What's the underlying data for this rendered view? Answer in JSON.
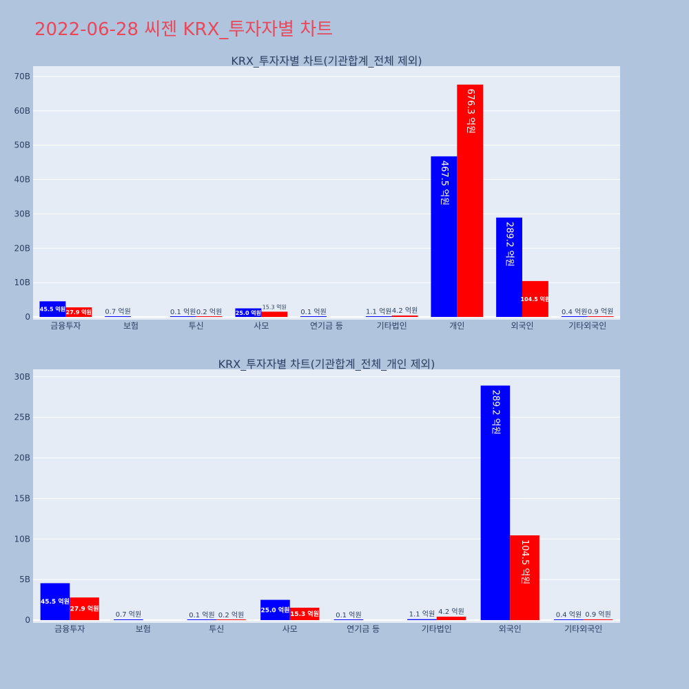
{
  "page_title": "2022-06-28 씨젠 KRX_투자자별 차트",
  "colors": {
    "background": "#b0c4de",
    "plot_background": "#e5ecf6",
    "title": "#e8485a",
    "series_1": "#0000ff",
    "series_2": "#ff0000",
    "text": "#2a3f5f"
  },
  "chart_data": [
    {
      "type": "bar",
      "title": "KRX_투자자별 차트(기관합계_전체 제외)",
      "categories": [
        "금융투자",
        "보험",
        "투신",
        "사모",
        "연기금 등",
        "기타법인",
        "개인",
        "외국인",
        "기타외국인"
      ],
      "series": [
        {
          "color": "#0000ff",
          "values": [
            4550000000,
            70000000,
            10000000,
            2500000000,
            10000000,
            110000000,
            46750000000,
            28920000000,
            40000000
          ],
          "labels": [
            "45.5 억원",
            "0.7 억원",
            "0.1 억원",
            "25.0 억원",
            "0.1 억원",
            "1.1 억원",
            "467.5 억원",
            "289.2 억원",
            "0.4 억원"
          ]
        },
        {
          "color": "#ff0000",
          "values": [
            2790000000,
            0,
            20000000,
            1530000000,
            0,
            420000000,
            67630000000,
            10450000000,
            90000000
          ],
          "labels": [
            "27.9 억원",
            "",
            "0.2 억원",
            "15.3 억원",
            "",
            "4.2 억원",
            "676.3 억원",
            "104.5 억원",
            "0.9 억원"
          ]
        }
      ],
      "yticks": [
        "0",
        "10B",
        "20B",
        "30B",
        "40B",
        "50B",
        "60B",
        "70B"
      ],
      "ytick_values": [
        0,
        10000000000,
        20000000000,
        30000000000,
        40000000000,
        50000000000,
        60000000000,
        70000000000
      ],
      "ylim": [
        0,
        72000000000
      ],
      "grid": true
    },
    {
      "type": "bar",
      "title": "KRX_투자자별 차트(기관합계_전체_개인 제외)",
      "categories": [
        "금융투자",
        "보험",
        "투신",
        "사모",
        "연기금 등",
        "기타법인",
        "외국인",
        "기타외국인"
      ],
      "series": [
        {
          "color": "#0000ff",
          "values": [
            4550000000,
            70000000,
            10000000,
            2500000000,
            10000000,
            110000000,
            28920000000,
            40000000
          ],
          "labels": [
            "45.5 억원",
            "0.7 억원",
            "0.1 억원",
            "25.0 억원",
            "0.1 억원",
            "1.1 억원",
            "289.2 억원",
            "0.4 억원"
          ]
        },
        {
          "color": "#ff0000",
          "values": [
            2790000000,
            0,
            20000000,
            1530000000,
            0,
            420000000,
            10450000000,
            90000000
          ],
          "labels": [
            "27.9 억원",
            "",
            "0.2 억원",
            "15.3 억원",
            "",
            "4.2 억원",
            "104.5 억원",
            "0.9 억원"
          ]
        }
      ],
      "yticks": [
        "0",
        "5B",
        "10B",
        "15B",
        "20B",
        "25B",
        "30B"
      ],
      "ytick_values": [
        0,
        5000000000,
        10000000000,
        15000000000,
        20000000000,
        25000000000,
        30000000000
      ],
      "ylim": [
        0,
        30500000000
      ],
      "grid": true
    }
  ]
}
